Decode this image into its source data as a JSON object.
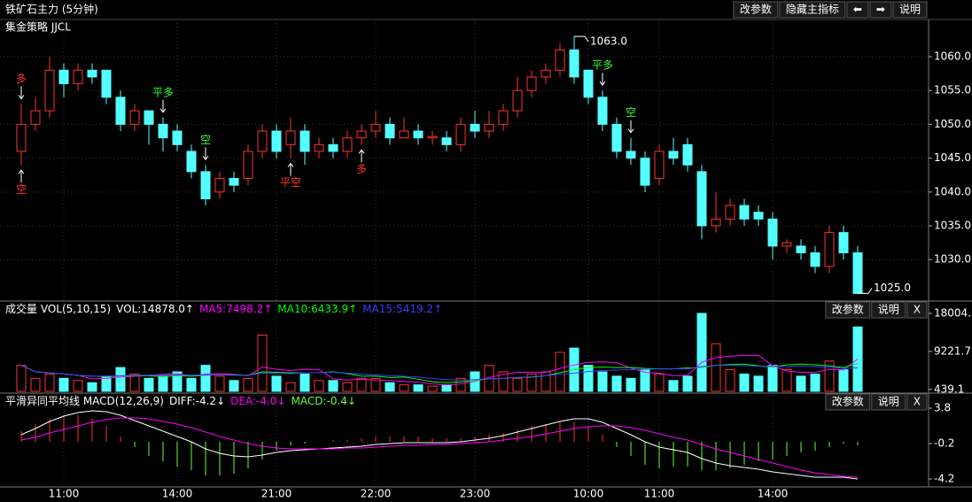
{
  "title": "铁矿石主力 (5分钟)",
  "toolbar": [
    "改参数",
    "隐藏主指标",
    "⬅",
    "➡",
    "说明"
  ],
  "chart_data": [
    {
      "type": "candlestick",
      "title": "集金策略 JJCL",
      "categories": [
        null,
        null,
        null,
        "11:00",
        null,
        null,
        null,
        null,
        null,
        null,
        null,
        "14:00",
        null,
        null,
        null,
        null,
        null,
        null,
        "21:00",
        null,
        null,
        null,
        null,
        null,
        null,
        "22:00",
        null,
        null,
        null,
        null,
        null,
        null,
        "23:00",
        null,
        null,
        null,
        null,
        null,
        null,
        null,
        "10:00",
        null,
        null,
        null,
        null,
        "11:00",
        null,
        null,
        null,
        null,
        null,
        null,
        null,
        "14:00",
        null,
        null,
        null,
        null,
        null,
        null
      ],
      "open": [
        1046,
        1050,
        1052,
        1058,
        1056,
        1058,
        1058,
        1054,
        1050,
        1052,
        1050,
        1049,
        1046,
        1043,
        1040,
        1042,
        1042,
        1046,
        1049,
        1047,
        1049,
        1046,
        1047,
        1046,
        1048,
        1049,
        1050,
        1048,
        1049,
        1048,
        1048,
        1047,
        1050,
        1049,
        1050,
        1052,
        1055,
        1057,
        1058,
        1061,
        1058,
        1054,
        1050,
        1046,
        1045,
        1042,
        1046,
        1047,
        1043,
        1035,
        1036,
        1038,
        1037,
        1036,
        1032,
        1032,
        1031,
        1029,
        1034,
        1031
      ],
      "high": [
        1053,
        1054,
        1060,
        1059,
        1059,
        1059,
        1058,
        1055,
        1053,
        1052,
        1051,
        1050,
        1047,
        1044,
        1043,
        1043,
        1047,
        1050,
        1050,
        1051,
        1050,
        1048,
        1048,
        1049,
        1050,
        1052,
        1051,
        1051,
        1050,
        1049,
        1049,
        1051,
        1052,
        1052,
        1053,
        1057,
        1058,
        1059,
        1062,
        1063,
        1058,
        1055,
        1051,
        1048,
        1046,
        1047,
        1048,
        1048,
        1044,
        1040,
        1039,
        1039,
        1038,
        1037,
        1033,
        1033,
        1032,
        1035,
        1035,
        1032
      ],
      "low": [
        1044,
        1049,
        1051,
        1054,
        1055,
        1056,
        1053,
        1049,
        1049,
        1047,
        1046,
        1046,
        1042,
        1038,
        1039,
        1040,
        1041,
        1045,
        1045,
        1045,
        1044,
        1045,
        1045,
        1045,
        1047,
        1048,
        1047,
        1048,
        1047,
        1047,
        1046,
        1046,
        1048,
        1048,
        1049,
        1051,
        1054,
        1056,
        1057,
        1056,
        1053,
        1049,
        1045,
        1044,
        1040,
        1041,
        1044,
        1043,
        1033,
        1034,
        1035,
        1035,
        1035,
        1030,
        1031,
        1030,
        1028,
        1028,
        1030,
        1025
      ],
      "close": [
        1050,
        1052,
        1058,
        1056,
        1058,
        1057,
        1054,
        1050,
        1052,
        1050,
        1048,
        1047,
        1043,
        1039,
        1042,
        1041,
        1046,
        1049,
        1046,
        1049,
        1046,
        1047,
        1046,
        1048,
        1049,
        1050,
        1048,
        1049,
        1048,
        1048.2,
        1047,
        1050,
        1049,
        1050,
        1052,
        1055,
        1057,
        1058,
        1061,
        1057,
        1054,
        1050,
        1046,
        1045,
        1041,
        1046,
        1045,
        1044,
        1035,
        1036,
        1038,
        1036,
        1036,
        1032,
        1032.5,
        1031,
        1029,
        1034,
        1031,
        1025
      ],
      "up_color": "#ff3232",
      "down_color": "#54ffff",
      "ylim": [
        1024.14,
        1065.76
      ],
      "yticks": [
        {
          "value": 1030,
          "label": "1030.0"
        },
        {
          "value": 1035,
          "label": "1035.0"
        },
        {
          "value": 1040,
          "label": "1040.0"
        },
        {
          "value": 1045,
          "label": "1045.0"
        },
        {
          "value": 1050,
          "label": "1050.0"
        },
        {
          "value": 1055,
          "label": "1055.0"
        },
        {
          "value": 1060,
          "label": "1060.0"
        }
      ],
      "grid": true,
      "annotations": [
        {
          "value": 1063,
          "label": "1063.0"
        },
        {
          "value": 1025,
          "label": "1025.0"
        }
      ],
      "signals_above": [
        "多",
        null,
        null,
        null,
        null,
        null,
        null,
        null,
        null,
        null,
        "平多",
        null,
        null,
        "空",
        null,
        null,
        null,
        null,
        null,
        null,
        null,
        null,
        null,
        null,
        null,
        null,
        null,
        null,
        null,
        null,
        null,
        null,
        null,
        null,
        null,
        null,
        null,
        null,
        null,
        null,
        null,
        "平多",
        null,
        "空",
        null,
        null,
        null,
        null,
        null,
        null,
        null,
        null,
        null,
        null,
        null,
        null,
        null,
        null,
        null,
        null
      ],
      "signals_below": [
        "空",
        null,
        null,
        null,
        null,
        null,
        null,
        null,
        null,
        null,
        null,
        null,
        null,
        null,
        null,
        null,
        null,
        null,
        null,
        "平空",
        null,
        null,
        null,
        null,
        "多",
        null,
        null,
        null,
        null,
        null,
        null,
        null,
        null,
        null,
        null,
        null,
        null,
        null,
        null,
        null,
        null,
        null,
        null,
        null,
        null,
        null,
        null,
        null,
        null,
        null,
        null,
        null,
        null,
        null,
        null,
        null,
        null,
        null,
        null,
        null
      ]
    },
    {
      "type": "volume",
      "title": "成交量 VOL(5,10,15)",
      "buttons": [
        "改参数",
        "说明",
        "X"
      ],
      "series": [
        {
          "name": "VOL",
          "color": "#ffffff",
          "legend": "VOL:14878.0↑",
          "values": [
            6000,
            3000,
            4000,
            3000,
            2500,
            2000,
            3500,
            5500,
            4000,
            3000,
            3500,
            4500,
            3000,
            6000,
            3500,
            2500,
            3000,
            13000,
            3500,
            2000,
            4000,
            2500,
            2500,
            2000,
            3000,
            3000,
            2000,
            1500,
            1500,
            1200,
            1500,
            3000,
            4500,
            6000,
            4500,
            3000,
            4000,
            4500,
            9000,
            10000,
            6000,
            4500,
            3500,
            3000,
            5000,
            4000,
            2500,
            3500,
            18004,
            11000,
            5000,
            4000,
            3500,
            6000,
            5000,
            3500,
            4000,
            7000,
            5000,
            14878
          ]
        },
        {
          "name": "MA5",
          "color": "#ff00ff",
          "legend": "MA5:7498.2↑",
          "values": [
            6000,
            4500,
            4300,
            4000,
            3700,
            2900,
            3000,
            3300,
            3500,
            3700,
            3900,
            4100,
            3600,
            4000,
            4100,
            3900,
            3600,
            5600,
            5100,
            4800,
            5100,
            5000,
            2900,
            2600,
            2800,
            2600,
            2500,
            2300,
            2100,
            1700,
            1500,
            1700,
            2300,
            3200,
            3900,
            4400,
            4400,
            4400,
            5300,
            6100,
            6700,
            6800,
            6600,
            5400,
            4400,
            4200,
            3600,
            3700,
            6700,
            7800,
            8100,
            8300,
            8300,
            5900,
            4700,
            4400,
            4400,
            5100,
            4900,
            7498.2
          ]
        },
        {
          "name": "MA10",
          "color": "#00ff00",
          "legend": "MA10:6433.9↑",
          "values": [
            6000,
            4500,
            4300,
            4000,
            3700,
            3500,
            3400,
            3500,
            3600,
            3600,
            3400,
            3600,
            3500,
            3700,
            3800,
            3800,
            3700,
            4500,
            4400,
            4300,
            4300,
            4300,
            4500,
            4100,
            3500,
            3500,
            3200,
            3300,
            2800,
            2200,
            2000,
            2200,
            2500,
            2900,
            3000,
            3200,
            3300,
            3600,
            4300,
            5000,
            5500,
            5600,
            5500,
            5500,
            5300,
            5200,
            5200,
            5400,
            5500,
            6000,
            6200,
            6300,
            5900,
            5600,
            6100,
            6300,
            6100,
            5900,
            5500,
            6433.9
          ]
        },
        {
          "name": "MA15",
          "color": "#3c3cff",
          "legend": "MA15:5419.2↑",
          "values": [
            6000,
            4500,
            4300,
            4000,
            3700,
            3500,
            3500,
            3600,
            3700,
            3700,
            3700,
            3800,
            3700,
            3800,
            3800,
            3700,
            3700,
            4200,
            4200,
            4100,
            4300,
            4300,
            4400,
            4200,
            4000,
            3800,
            3600,
            3500,
            3300,
            3000,
            2700,
            2600,
            2700,
            2900,
            3000,
            3200,
            3400,
            3600,
            3900,
            4200,
            4600,
            4800,
            4900,
            5000,
            5100,
            5200,
            5200,
            5200,
            5700,
            6000,
            6000,
            5900,
            5800,
            5800,
            5700,
            5800,
            5700,
            5600,
            5300,
            5419.2
          ]
        }
      ],
      "ylim": [
        0,
        20660
      ],
      "yticks": [
        439.1,
        9221.7,
        18004.3
      ]
    },
    {
      "type": "macd",
      "title": "平滑异同平均线 MACD(12,26,9)",
      "buttons": [
        "改参数",
        "说明",
        "X"
      ],
      "series": [
        {
          "name": "DIFF",
          "color": "#ffffff",
          "legend": "DIFF:-4.2↓",
          "values": [
            0.8,
            1.5,
            2.3,
            2.9,
            3.3,
            3.5,
            3.4,
            3.0,
            2.4,
            1.8,
            1.2,
            0.6,
            0.0,
            -0.8,
            -1.3,
            -1.6,
            -1.7,
            -1.5,
            -1.2,
            -1.0,
            -0.9,
            -0.8,
            -0.7,
            -0.6,
            -0.5,
            -0.3,
            -0.2,
            -0.1,
            -0.1,
            -0.1,
            -0.1,
            0.0,
            0.2,
            0.4,
            0.7,
            1.1,
            1.5,
            1.9,
            2.3,
            2.6,
            2.6,
            2.2,
            1.5,
            0.8,
            0.0,
            -0.6,
            -0.9,
            -1.2,
            -1.9,
            -2.4,
            -2.7,
            -2.9,
            -3.1,
            -3.4,
            -3.6,
            -3.8,
            -4.0,
            -4.0,
            -4.0,
            -4.2
          ]
        },
        {
          "name": "DEA",
          "color": "#ff00ff",
          "legend": "DEA:-4.0↓",
          "values": [
            0.2,
            0.5,
            1.0,
            1.4,
            1.8,
            2.2,
            2.5,
            2.7,
            2.7,
            2.6,
            2.3,
            2.0,
            1.6,
            1.1,
            0.6,
            0.2,
            -0.2,
            -0.5,
            -0.7,
            -0.8,
            -0.8,
            -0.8,
            -0.8,
            -0.7,
            -0.7,
            -0.6,
            -0.5,
            -0.4,
            -0.4,
            -0.3,
            -0.3,
            -0.2,
            -0.1,
            0.0,
            0.2,
            0.4,
            0.6,
            0.9,
            1.2,
            1.5,
            1.7,
            1.8,
            1.8,
            1.6,
            1.3,
            0.9,
            0.5,
            0.2,
            -0.3,
            -0.8,
            -1.2,
            -1.6,
            -2.0,
            -2.4,
            -2.8,
            -3.2,
            -3.5,
            -3.7,
            -3.9,
            -4.0
          ]
        },
        {
          "name": "MACD",
          "color": "#66ff33",
          "neg_color": "#66ff33",
          "pos_color": "#ff3232",
          "legend": "MACD:-0.4↓",
          "values": [
            1.2,
            2.0,
            2.6,
            3.0,
            3.0,
            2.6,
            1.8,
            0.6,
            -0.6,
            -1.6,
            -2.2,
            -2.8,
            -3.2,
            -3.8,
            -3.8,
            -3.6,
            -3.0,
            -2.0,
            -1.0,
            -0.4,
            -0.2,
            0.0,
            0.2,
            0.2,
            0.4,
            0.6,
            0.6,
            0.6,
            0.6,
            0.4,
            0.4,
            0.4,
            0.6,
            0.8,
            1.0,
            1.4,
            1.8,
            2.0,
            2.2,
            2.2,
            1.8,
            0.8,
            -0.6,
            -1.6,
            -2.6,
            -3.0,
            -2.8,
            -2.8,
            -3.2,
            -3.2,
            -3.0,
            -2.6,
            -2.2,
            -2.0,
            -1.6,
            -1.2,
            -1.0,
            -0.6,
            -0.2,
            -0.4
          ]
        }
      ],
      "ylim": [
        -5.1,
        5.2
      ],
      "yticks": [
        -4.2,
        -0.2,
        3.8
      ]
    }
  ]
}
